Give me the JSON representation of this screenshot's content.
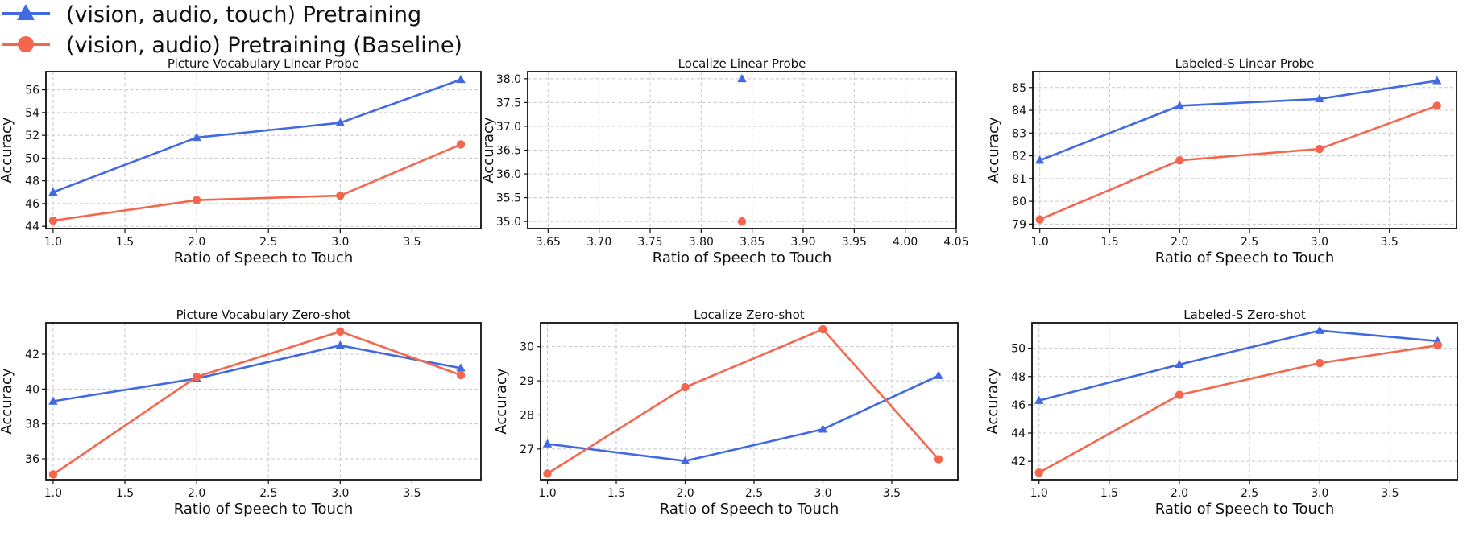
{
  "colors": {
    "touch": "#4169e1",
    "baseline": "#f4674e"
  },
  "legend": {
    "placement": "top-left",
    "entries": [
      {
        "label": "(vision, audio, touch) Pretraining",
        "color": "#4169e1",
        "marker": "triangle"
      },
      {
        "label": "(vision, audio) Pretraining (Baseline)",
        "color": "#f4674e",
        "marker": "circle"
      }
    ]
  },
  "chart_data": [
    {
      "type": "line",
      "title": "Picture Vocabulary Linear Probe",
      "xlabel": "Ratio of Speech to Touch",
      "ylabel": "Accuracy",
      "xlim": [
        0.95,
        3.98
      ],
      "ylim": [
        43.8,
        57.6
      ],
      "xticks": [
        1.0,
        1.5,
        2.0,
        2.5,
        3.0,
        3.5
      ],
      "xtick_labels": [
        "1.0",
        "1.5",
        "2.0",
        "2.5",
        "3.0",
        "3.5"
      ],
      "yticks": [
        44,
        46,
        48,
        50,
        52,
        54,
        56
      ],
      "ytick_labels": [
        "44",
        "46",
        "48",
        "50",
        "52",
        "54",
        "56"
      ],
      "grid": true,
      "series": [
        {
          "name": "(vision, audio, touch) Pretraining",
          "marker": "triangle",
          "x": [
            1.0,
            2.0,
            3.0,
            3.84
          ],
          "y": [
            47.0,
            51.8,
            53.1,
            56.9
          ]
        },
        {
          "name": "(vision, audio) Pretraining (Baseline)",
          "marker": "circle",
          "x": [
            1.0,
            2.0,
            3.0,
            3.84
          ],
          "y": [
            44.5,
            46.3,
            46.7,
            51.2
          ]
        }
      ]
    },
    {
      "type": "scatter",
      "title": "Localize Linear Probe",
      "xlabel": "Ratio of Speech to Touch",
      "ylabel": "Accuracy",
      "xlim": [
        3.63,
        4.05
      ],
      "ylim": [
        34.85,
        38.15
      ],
      "xticks": [
        3.65,
        3.7,
        3.75,
        3.8,
        3.85,
        3.9,
        3.95,
        4.0,
        4.05
      ],
      "xtick_labels": [
        "3.65",
        "3.70",
        "3.75",
        "3.80",
        "3.85",
        "3.90",
        "3.95",
        "4.00",
        "4.05"
      ],
      "yticks": [
        35.0,
        35.5,
        36.0,
        36.5,
        37.0,
        37.5,
        38.0
      ],
      "ytick_labels": [
        "35.0",
        "35.5",
        "36.0",
        "36.5",
        "37.0",
        "37.5",
        "38.0"
      ],
      "grid": true,
      "series": [
        {
          "name": "(vision, audio, touch) Pretraining",
          "marker": "triangle",
          "x": [
            3.84
          ],
          "y": [
            38.0
          ]
        },
        {
          "name": "(vision, audio) Pretraining (Baseline)",
          "marker": "circle",
          "x": [
            3.84
          ],
          "y": [
            35.0
          ]
        }
      ]
    },
    {
      "type": "line",
      "title": "Labeled-S Linear Probe",
      "xlabel": "Ratio of Speech to Touch",
      "ylabel": "Accuracy",
      "xlim": [
        0.95,
        3.98
      ],
      "ylim": [
        78.8,
        85.7
      ],
      "xticks": [
        1.0,
        1.5,
        2.0,
        2.5,
        3.0,
        3.5
      ],
      "xtick_labels": [
        "1.0",
        "1.5",
        "2.0",
        "2.5",
        "3.0",
        "3.5"
      ],
      "yticks": [
        79,
        80,
        81,
        82,
        83,
        84,
        85
      ],
      "ytick_labels": [
        "79",
        "80",
        "81",
        "82",
        "83",
        "84",
        "85"
      ],
      "grid": true,
      "series": [
        {
          "name": "(vision, audio, touch) Pretraining",
          "marker": "triangle",
          "x": [
            1.0,
            2.0,
            3.0,
            3.84
          ],
          "y": [
            81.8,
            84.2,
            84.5,
            85.3
          ]
        },
        {
          "name": "(vision, audio) Pretraining (Baseline)",
          "marker": "circle",
          "x": [
            1.0,
            2.0,
            3.0,
            3.84
          ],
          "y": [
            79.2,
            81.8,
            82.3,
            84.2
          ]
        }
      ]
    },
    {
      "type": "line",
      "title": "Picture Vocabulary Zero-shot",
      "xlabel": "Ratio of Speech to Touch",
      "ylabel": "Accuracy",
      "xlim": [
        0.95,
        3.98
      ],
      "ylim": [
        34.8,
        43.8
      ],
      "xticks": [
        1.0,
        1.5,
        2.0,
        2.5,
        3.0,
        3.5
      ],
      "xtick_labels": [
        "1.0",
        "1.5",
        "2.0",
        "2.5",
        "3.0",
        "3.5"
      ],
      "yticks": [
        36,
        38,
        40,
        42
      ],
      "ytick_labels": [
        "36",
        "38",
        "40",
        "42"
      ],
      "grid": true,
      "series": [
        {
          "name": "(vision, audio, touch) Pretraining",
          "marker": "triangle",
          "x": [
            1.0,
            2.0,
            3.0,
            3.84
          ],
          "y": [
            39.3,
            40.6,
            42.5,
            41.2
          ]
        },
        {
          "name": "(vision, audio) Pretraining (Baseline)",
          "marker": "circle",
          "x": [
            1.0,
            2.0,
            3.0,
            3.84
          ],
          "y": [
            35.1,
            40.7,
            43.3,
            40.8
          ]
        }
      ]
    },
    {
      "type": "line",
      "title": "Localize Zero-shot",
      "xlabel": "Ratio of Speech to Touch",
      "ylabel": "Accuracy",
      "xlim": [
        0.95,
        3.98
      ],
      "ylim": [
        26.1,
        30.7
      ],
      "xticks": [
        1.0,
        1.5,
        2.0,
        2.5,
        3.0,
        3.5
      ],
      "xtick_labels": [
        "1.0",
        "1.5",
        "2.0",
        "2.5",
        "3.0",
        "3.5"
      ],
      "yticks": [
        27,
        28,
        29,
        30
      ],
      "ytick_labels": [
        "27",
        "28",
        "29",
        "30"
      ],
      "grid": true,
      "series": [
        {
          "name": "(vision, audio, touch) Pretraining",
          "marker": "triangle",
          "x": [
            1.0,
            2.0,
            3.0,
            3.84
          ],
          "y": [
            27.15,
            26.65,
            27.58,
            29.15
          ]
        },
        {
          "name": "(vision, audio) Pretraining (Baseline)",
          "marker": "circle",
          "x": [
            1.0,
            2.0,
            3.0,
            3.84
          ],
          "y": [
            26.28,
            28.81,
            30.51,
            26.7
          ]
        }
      ]
    },
    {
      "type": "line",
      "title": "Labeled-S Zero-shot",
      "xlabel": "Ratio of Speech to Touch",
      "ylabel": "Accuracy",
      "xlim": [
        0.95,
        3.98
      ],
      "ylim": [
        40.7,
        51.8
      ],
      "xticks": [
        1.0,
        1.5,
        2.0,
        2.5,
        3.0,
        3.5
      ],
      "xtick_labels": [
        "1.0",
        "1.5",
        "2.0",
        "2.5",
        "3.0",
        "3.5"
      ],
      "yticks": [
        42,
        44,
        46,
        48,
        50
      ],
      "ytick_labels": [
        "42",
        "44",
        "46",
        "48",
        "50"
      ],
      "grid": true,
      "series": [
        {
          "name": "(vision, audio, touch) Pretraining",
          "marker": "triangle",
          "x": [
            1.0,
            2.0,
            3.0,
            3.84
          ],
          "y": [
            46.3,
            48.85,
            51.25,
            50.5
          ]
        },
        {
          "name": "(vision, audio) Pretraining (Baseline)",
          "marker": "circle",
          "x": [
            1.0,
            2.0,
            3.0,
            3.84
          ],
          "y": [
            41.2,
            46.7,
            48.95,
            50.2
          ]
        }
      ]
    }
  ]
}
